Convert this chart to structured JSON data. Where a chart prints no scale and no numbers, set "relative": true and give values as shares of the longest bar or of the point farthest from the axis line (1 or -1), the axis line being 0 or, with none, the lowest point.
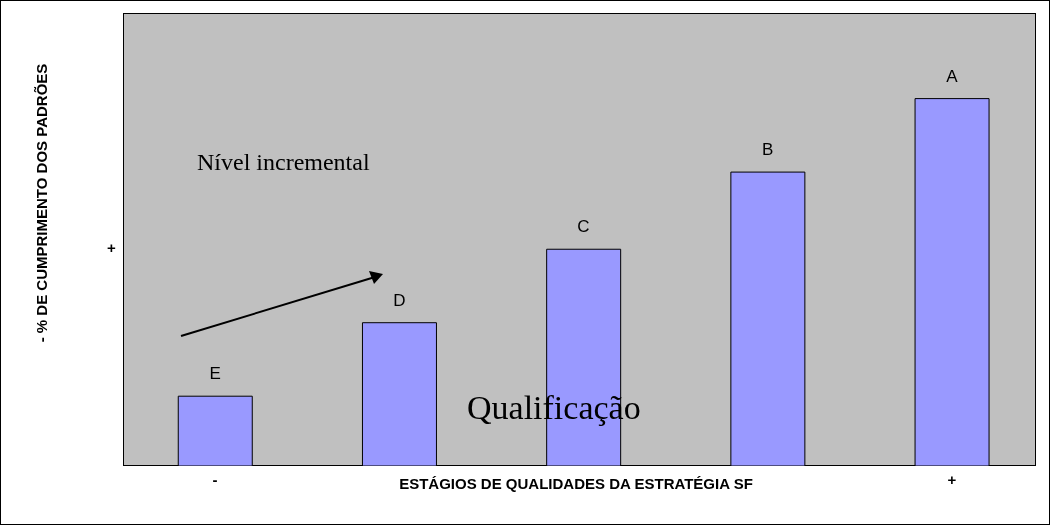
{
  "chart_data": {
    "type": "bar",
    "relative": true,
    "xlabel": "ESTÁGIOS DE QUALIDADES DA ESTRATÉGIA SF",
    "ylabel": "- % DE CUMPRIMENTO DOS PADRÕES",
    "categories": [
      "-",
      null,
      null,
      null,
      "+"
    ],
    "values": [
      0.19,
      0.39,
      0.59,
      0.8,
      1.0
    ],
    "color": "#9999ff",
    "annotations": [
      "+",
      "Nível incremental",
      "Qualificação",
      {
        "text": "E",
        "y": 0.19
      },
      {
        "text": "D",
        "y": 0.39
      },
      {
        "text": "C",
        "y": 0.59
      },
      {
        "text": "B",
        "y": 0.8
      },
      {
        "text": "A",
        "y": 1.0
      }
    ]
  }
}
